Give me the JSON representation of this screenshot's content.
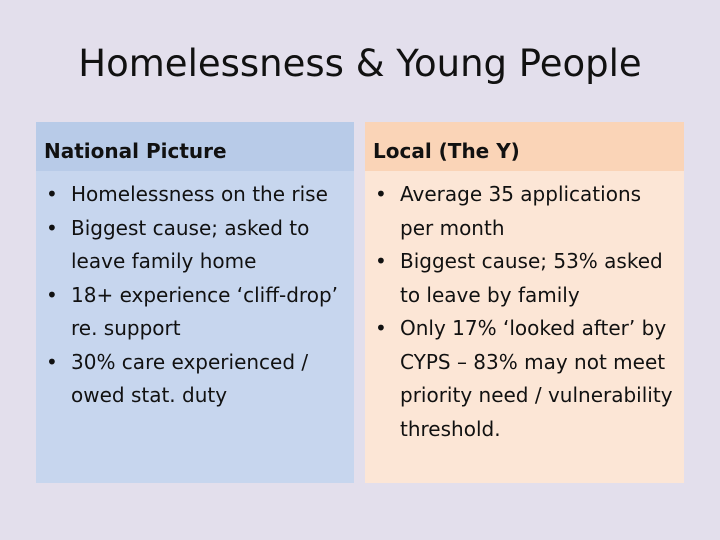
{
  "title": "Homelessness & Young People",
  "left": {
    "heading": "National Picture",
    "items": [
      "Homelessness on the rise",
      "Biggest cause; asked to leave family home",
      "18+ experience ‘cliff-drop’ re. support",
      "30% care experienced / owed stat. duty"
    ]
  },
  "right": {
    "heading": "Local (The Y)",
    "items": [
      "Average 35 applications per month",
      "Biggest cause; 53% asked to leave by family",
      "Only 17% ‘looked after’ by CYPS – 83% may not meet priority need / vulnerability threshold."
    ]
  },
  "colors": {
    "background": "#e3dfec",
    "left_header": "#b8cbe8",
    "left_body": "#c7d6ee",
    "right_header": "#fad4b7",
    "right_body": "#fce6d6"
  }
}
